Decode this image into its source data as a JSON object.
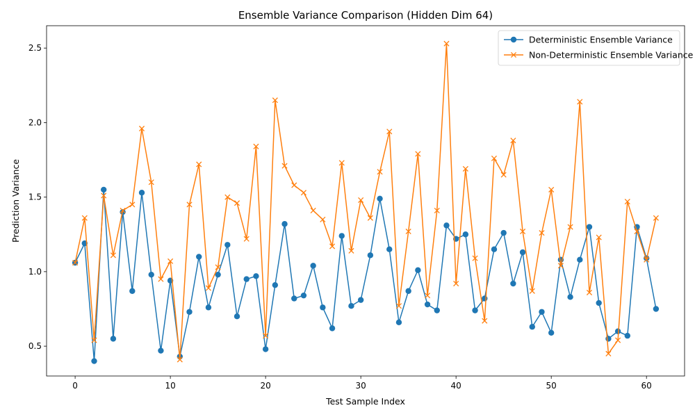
{
  "chart_data": {
    "type": "line",
    "title": "Ensemble Variance Comparison (Hidden Dim 64)",
    "xlabel": "Test Sample Index",
    "ylabel": "Prediction Variance",
    "xlim": [
      -3,
      64
    ],
    "ylim": [
      0.3,
      2.65
    ],
    "xticks": [
      0,
      10,
      20,
      30,
      40,
      50,
      60
    ],
    "yticks": [
      0.5,
      1.0,
      1.5,
      2.0,
      2.5
    ],
    "ytick_labels": [
      "0.5",
      "1.0",
      "1.5",
      "2.0",
      "2.5"
    ],
    "grid": false,
    "legend_position": "top-right",
    "series": [
      {
        "name": "Deterministic Ensemble Variance",
        "color": "#1f77b4",
        "marker": "circle",
        "values": [
          1.06,
          1.19,
          0.4,
          1.55,
          0.55,
          1.4,
          0.87,
          1.53,
          0.98,
          0.47,
          0.94,
          0.43,
          0.73,
          1.1,
          0.76,
          0.98,
          1.18,
          0.7,
          0.95,
          0.97,
          0.48,
          0.91,
          1.32,
          0.82,
          0.84,
          1.04,
          0.76,
          0.62,
          1.24,
          0.77,
          0.81,
          1.11,
          1.49,
          1.15,
          0.66,
          0.87,
          1.01,
          0.78,
          0.74,
          1.31,
          1.22,
          1.25,
          0.74,
          0.82,
          1.15,
          1.26,
          0.92,
          1.13,
          0.63,
          0.73,
          0.59,
          1.08,
          0.83,
          1.08,
          1.3,
          0.79,
          0.55,
          0.6,
          0.57,
          1.3,
          1.09,
          0.75
        ]
      },
      {
        "name": "Non-Deterministic Ensemble Variance",
        "color": "#ff7f0e",
        "marker": "x",
        "values": [
          1.06,
          1.36,
          0.54,
          1.51,
          1.11,
          1.41,
          1.45,
          1.96,
          1.6,
          0.95,
          1.07,
          0.41,
          1.45,
          1.72,
          0.89,
          1.03,
          1.5,
          1.46,
          1.22,
          1.84,
          0.57,
          2.15,
          1.71,
          1.58,
          1.53,
          1.41,
          1.35,
          1.17,
          1.73,
          1.14,
          1.48,
          1.36,
          1.67,
          1.94,
          0.77,
          1.27,
          1.79,
          0.84,
          1.41,
          2.53,
          0.92,
          1.69,
          1.09,
          0.67,
          1.76,
          1.65,
          1.88,
          1.27,
          0.87,
          1.26,
          1.55,
          1.04,
          1.3,
          2.14,
          0.86,
          1.23,
          0.45,
          0.54,
          1.47,
          1.27,
          1.08,
          1.36
        ]
      }
    ]
  }
}
